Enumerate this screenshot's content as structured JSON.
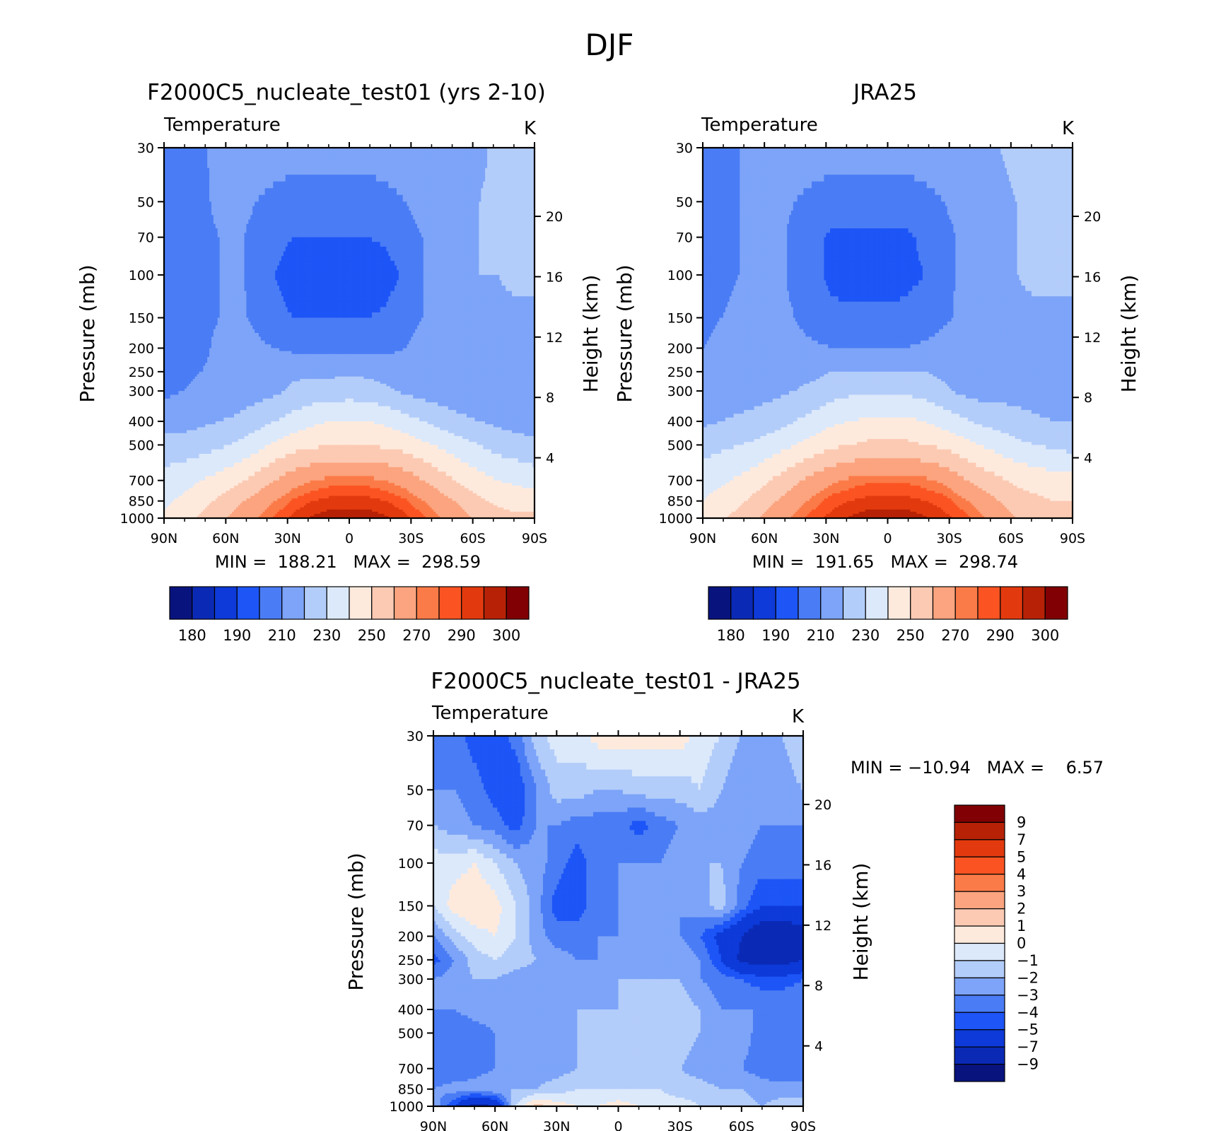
{
  "figure_title": "DJF",
  "colors": {
    "abs_palette": [
      "#08137e",
      "#0a2ab6",
      "#0d3ad8",
      "#1d55f7",
      "#4a7cf5",
      "#7da4f8",
      "#b3cdfa",
      "#dce9fb",
      "#feeadd",
      "#fccab3",
      "#fba47f",
      "#fb7b48",
      "#fb5422",
      "#e23a0e",
      "#b72206",
      "#800004"
    ],
    "diff_palette": [
      "#08137e",
      "#0a2ab6",
      "#0d3ad8",
      "#1d55f7",
      "#4a7cf5",
      "#7da4f8",
      "#b3cdfa",
      "#dce9fb",
      "#feeadd",
      "#fccab3",
      "#fba47f",
      "#fb7b48",
      "#fb5422",
      "#e23a0e",
      "#b72206",
      "#800004"
    ]
  },
  "chart_data": [
    {
      "id": "model",
      "type": "heatmap",
      "title": "F2000C5_nucleate_test01 (yrs 2-10)",
      "variable": "Temperature",
      "units": "K",
      "ylabel": "Pressure (mb)",
      "ylabel_right": "Height (km)",
      "x_ticks": [
        "90N",
        "60N",
        "30N",
        "0",
        "30S",
        "60S",
        "90S"
      ],
      "y_ticks": [
        30,
        50,
        70,
        100,
        150,
        200,
        250,
        300,
        400,
        500,
        700,
        850,
        1000
      ],
      "height_ticks": [
        20,
        16,
        12,
        8,
        4
      ],
      "y_scale": "log",
      "ylim": [
        1000,
        30
      ],
      "min_max_text": "MIN =  188.21   MAX =  298.59",
      "min": 188.21,
      "max": 298.59,
      "colorbar": {
        "orientation": "horizontal",
        "labels": [
          "180",
          "190",
          "210",
          "230",
          "250",
          "270",
          "290",
          "300"
        ]
      },
      "cells": [
        [
          30,
          [
            212,
            218,
            218,
            224,
            224,
            224,
            224,
            224,
            224,
            224,
            224,
            224,
            224,
            224,
            224,
            228,
            228,
            228,
            232,
            232,
            232
          ]
        ],
        [
          50,
          [
            212,
            216,
            218,
            222,
            224,
            220,
            218,
            216,
            216,
            216,
            216,
            216,
            218,
            220,
            224,
            228,
            228,
            230,
            232,
            232,
            232
          ]
        ],
        [
          70,
          [
            214,
            216,
            218,
            220,
            222,
            216,
            212,
            210,
            210,
            210,
            210,
            210,
            212,
            216,
            220,
            226,
            228,
            230,
            232,
            232,
            232
          ]
        ],
        [
          100,
          [
            214,
            216,
            218,
            220,
            222,
            216,
            210,
            206,
            204,
            202,
            200,
            202,
            206,
            212,
            220,
            226,
            228,
            230,
            230,
            232,
            232
          ]
        ],
        [
          150,
          [
            212,
            216,
            218,
            220,
            222,
            218,
            212,
            210,
            210,
            210,
            210,
            210,
            212,
            216,
            220,
            226,
            228,
            228,
            228,
            228,
            228
          ]
        ],
        [
          200,
          [
            212,
            216,
            218,
            222,
            224,
            222,
            220,
            218,
            218,
            218,
            218,
            218,
            218,
            220,
            224,
            228,
            226,
            226,
            226,
            226,
            226
          ]
        ],
        [
          250,
          [
            214,
            218,
            220,
            222,
            224,
            224,
            226,
            228,
            228,
            228,
            228,
            228,
            226,
            224,
            224,
            224,
            224,
            224,
            224,
            224,
            224
          ]
        ],
        [
          300,
          [
            218,
            220,
            222,
            222,
            224,
            226,
            228,
            232,
            234,
            234,
            236,
            234,
            232,
            228,
            226,
            224,
            224,
            224,
            224,
            224,
            224
          ]
        ],
        [
          400,
          [
            226,
            226,
            228,
            230,
            232,
            236,
            240,
            244,
            248,
            250,
            250,
            250,
            248,
            244,
            240,
            236,
            232,
            230,
            228,
            226,
            226
          ]
        ],
        [
          500,
          [
            234,
            234,
            236,
            238,
            242,
            246,
            252,
            256,
            258,
            260,
            260,
            260,
            258,
            256,
            252,
            248,
            244,
            240,
            236,
            234,
            232
          ]
        ],
        [
          700,
          [
            244,
            246,
            250,
            254,
            258,
            264,
            270,
            276,
            280,
            282,
            282,
            282,
            280,
            276,
            270,
            264,
            258,
            254,
            250,
            248,
            246
          ]
        ],
        [
          850,
          [
            248,
            252,
            256,
            262,
            268,
            274,
            280,
            286,
            290,
            292,
            292,
            292,
            290,
            286,
            280,
            274,
            268,
            262,
            258,
            256,
            256
          ]
        ],
        [
          1000,
          [
            252,
            256,
            262,
            268,
            274,
            280,
            286,
            292,
            296,
            298,
            298,
            298,
            296,
            292,
            286,
            280,
            274,
            268,
            264,
            262,
            262
          ]
        ]
      ]
    },
    {
      "id": "obs",
      "type": "heatmap",
      "title": "JRA25",
      "variable": "Temperature",
      "units": "K",
      "ylabel": "Pressure (mb)",
      "ylabel_right": "Height (km)",
      "x_ticks": [
        "90N",
        "60N",
        "30N",
        "0",
        "30S",
        "60S",
        "90S"
      ],
      "y_ticks": [
        30,
        50,
        70,
        100,
        150,
        200,
        250,
        300,
        400,
        500,
        700,
        850,
        1000
      ],
      "height_ticks": [
        20,
        16,
        12,
        8,
        4
      ],
      "y_scale": "log",
      "ylim": [
        1000,
        30
      ],
      "min_max_text": "MIN =  191.65   MAX =  298.74",
      "min": 191.65,
      "max": 298.74,
      "colorbar": {
        "orientation": "horizontal",
        "labels": [
          "180",
          "190",
          "210",
          "230",
          "250",
          "270",
          "290",
          "300"
        ]
      },
      "cells": [
        [
          30,
          [
            216,
            218,
            220,
            222,
            224,
            224,
            224,
            224,
            224,
            224,
            224,
            224,
            224,
            224,
            226,
            228,
            230,
            232,
            232,
            232,
            232
          ]
        ],
        [
          50,
          [
            216,
            218,
            220,
            222,
            224,
            220,
            218,
            216,
            216,
            216,
            216,
            216,
            218,
            220,
            224,
            226,
            228,
            230,
            232,
            232,
            232
          ]
        ],
        [
          70,
          [
            218,
            218,
            220,
            222,
            224,
            216,
            212,
            208,
            208,
            208,
            208,
            208,
            212,
            216,
            222,
            226,
            228,
            230,
            232,
            232,
            232
          ]
        ],
        [
          100,
          [
            218,
            218,
            220,
            222,
            224,
            216,
            212,
            208,
            206,
            206,
            206,
            208,
            210,
            216,
            222,
            226,
            228,
            230,
            232,
            232,
            232
          ]
        ],
        [
          150,
          [
            218,
            220,
            222,
            224,
            224,
            220,
            214,
            212,
            212,
            212,
            212,
            212,
            214,
            218,
            222,
            226,
            228,
            228,
            228,
            228,
            228
          ]
        ],
        [
          200,
          [
            220,
            222,
            224,
            224,
            226,
            224,
            222,
            220,
            220,
            220,
            220,
            220,
            222,
            224,
            226,
            228,
            228,
            226,
            226,
            226,
            226
          ]
        ],
        [
          250,
          [
            220,
            222,
            224,
            226,
            226,
            228,
            228,
            230,
            230,
            230,
            230,
            230,
            230,
            228,
            226,
            226,
            226,
            226,
            222,
            222,
            222
          ]
        ],
        [
          300,
          [
            222,
            224,
            224,
            226,
            228,
            230,
            232,
            236,
            238,
            238,
            238,
            238,
            236,
            232,
            228,
            226,
            226,
            226,
            224,
            222,
            222
          ]
        ],
        [
          400,
          [
            228,
            230,
            232,
            234,
            236,
            240,
            244,
            248,
            250,
            252,
            252,
            252,
            250,
            246,
            242,
            238,
            236,
            234,
            232,
            230,
            230
          ]
        ],
        [
          500,
          [
            236,
            238,
            240,
            242,
            246,
            250,
            254,
            258,
            260,
            262,
            262,
            262,
            260,
            258,
            254,
            250,
            246,
            242,
            240,
            238,
            236
          ]
        ],
        [
          700,
          [
            246,
            248,
            252,
            256,
            262,
            268,
            274,
            278,
            282,
            284,
            284,
            284,
            282,
            278,
            272,
            266,
            262,
            258,
            256,
            254,
            254
          ]
        ],
        [
          850,
          [
            250,
            254,
            258,
            264,
            270,
            276,
            282,
            288,
            290,
            292,
            292,
            292,
            290,
            288,
            282,
            276,
            270,
            264,
            262,
            260,
            260
          ]
        ],
        [
          1000,
          [
            254,
            258,
            264,
            270,
            276,
            282,
            288,
            292,
            296,
            298,
            298,
            298,
            296,
            292,
            288,
            282,
            276,
            270,
            266,
            264,
            264
          ]
        ]
      ]
    },
    {
      "id": "diff",
      "type": "heatmap",
      "title": "F2000C5_nucleate_test01 - JRA25",
      "variable": "Temperature",
      "units": "K",
      "ylabel": "Pressure (mb)",
      "ylabel_right": "Height (km)",
      "x_ticks": [
        "90N",
        "60N",
        "30N",
        "0",
        "30S",
        "60S",
        "90S"
      ],
      "y_ticks": [
        30,
        50,
        70,
        100,
        150,
        200,
        250,
        300,
        400,
        500,
        700,
        850,
        1000
      ],
      "height_ticks": [
        20,
        16,
        12,
        8,
        4
      ],
      "y_scale": "log",
      "ylim": [
        1000,
        30
      ],
      "min_max_text": "MIN = −10.94   MAX =    6.57",
      "min": -10.94,
      "max": 6.57,
      "colorbar": {
        "orientation": "vertical",
        "labels": [
          "9",
          "7",
          "5",
          "4",
          "3",
          "2",
          "1",
          "0",
          "−1",
          "−2",
          "−3",
          "−4",
          "−5",
          "−7",
          "−9"
        ]
      },
      "cells": [
        [
          30,
          [
            -3.5,
            -3.5,
            -4.5,
            -5,
            -3.5,
            -1.5,
            -0.5,
            -0.5,
            0.5,
            0.5,
            0.5,
            0.5,
            0.5,
            -0.5,
            -1,
            -2,
            -2,
            -2,
            -1
          ]
        ],
        [
          50,
          [
            -3,
            -3,
            -3.5,
            -4.5,
            -5,
            -3,
            -1.5,
            -1.5,
            -2,
            -2,
            -1.5,
            -1.5,
            -1.5,
            -1,
            -2,
            -3,
            -3,
            -2.5,
            -2
          ]
        ],
        [
          70,
          [
            -2,
            -2.5,
            -3,
            -3.5,
            -4.5,
            -3,
            -3,
            -3.5,
            -3.5,
            -3.5,
            -4.5,
            -3.5,
            -3,
            -2.5,
            -2.5,
            -2.5,
            -3,
            -3,
            -3
          ]
        ],
        [
          100,
          [
            -0.5,
            -0.5,
            0,
            -1,
            -2,
            -2.5,
            -3.5,
            -4.5,
            -3.5,
            -3,
            -3,
            -3,
            -2.5,
            -2,
            -2,
            -3,
            -3.5,
            -3.5,
            -3.5
          ]
        ],
        [
          150,
          [
            -1,
            0.5,
            1,
            0.5,
            -1,
            -2.5,
            -4.5,
            -4.5,
            -3.5,
            -3,
            -3,
            -3,
            -3,
            -2.5,
            -1.5,
            -3.5,
            -5,
            -5,
            -5
          ]
        ],
        [
          200,
          [
            -3,
            -1.5,
            -0.5,
            0,
            -1,
            -2.5,
            -3.5,
            -3.5,
            -3,
            -3,
            -3,
            -2.5,
            -3,
            -4,
            -5.5,
            -7,
            -9,
            -9,
            -8
          ]
        ],
        [
          250,
          [
            -4.5,
            -3,
            -1.5,
            -1,
            -1.5,
            -2,
            -2.5,
            -3,
            -3,
            -3,
            -2.5,
            -2.5,
            -2,
            -3,
            -5,
            -7.5,
            -8,
            -8,
            -7
          ]
        ],
        [
          300,
          [
            -3,
            -2.5,
            -2,
            -2,
            -2.5,
            -2.5,
            -3,
            -2.5,
            -2.5,
            -2,
            -2,
            -2,
            -2,
            -3,
            -3.5,
            -4,
            -4.5,
            -4.5,
            -4
          ]
        ],
        [
          400,
          [
            -3,
            -3,
            -2.5,
            -2.5,
            -3,
            -3,
            -2.5,
            -2,
            -2,
            -2,
            -1.5,
            -1.5,
            -1.5,
            -2,
            -3,
            -3,
            -3,
            -3,
            -3
          ]
        ],
        [
          500,
          [
            -3.5,
            -4,
            -3.5,
            -3,
            -3,
            -3,
            -2.5,
            -2,
            -1.5,
            -1.5,
            -1,
            -1.5,
            -1.5,
            -2,
            -3,
            -2.5,
            -3.5,
            -4,
            -3.5
          ]
        ],
        [
          700,
          [
            -4,
            -4,
            -3.5,
            -3,
            -3,
            -2.5,
            -2.5,
            -2,
            -2,
            -1.5,
            -1.5,
            -1.5,
            -2,
            -2.5,
            -3,
            -3,
            -3.5,
            -4,
            -4
          ]
        ],
        [
          850,
          [
            -3,
            -2.5,
            -2.5,
            -2,
            -2,
            -2,
            -1.5,
            -1,
            -1,
            -1,
            -1,
            -1,
            -1.5,
            -1.5,
            -2,
            -2,
            -2.5,
            -2.5,
            -2.5
          ]
        ],
        [
          1000,
          [
            -2,
            -5,
            -8,
            -7,
            -1,
            1.5,
            0.5,
            0,
            0,
            0.5,
            0,
            -0.5,
            -0.5,
            -1,
            -1,
            -1.5,
            -2,
            -1.5,
            -1.5
          ]
        ]
      ]
    }
  ]
}
